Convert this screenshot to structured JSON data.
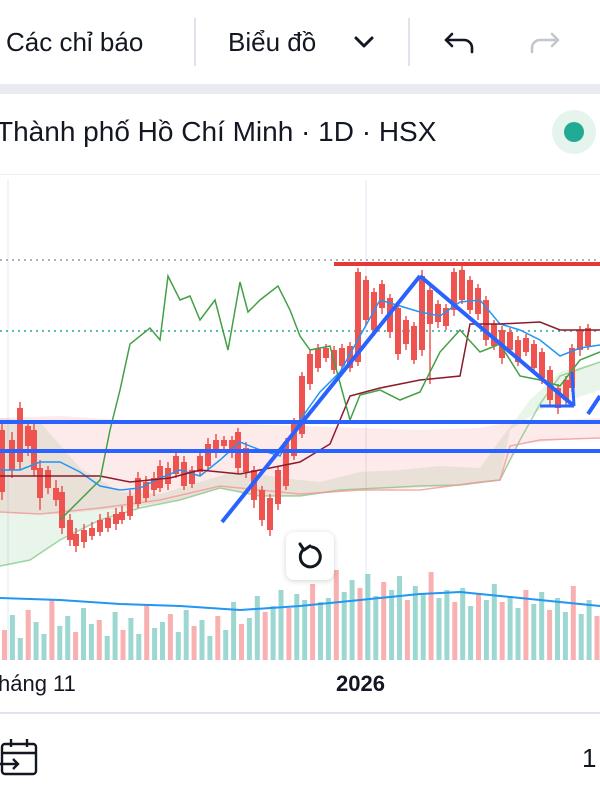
{
  "toolbar": {
    "indicators_label": "Các chỉ báo",
    "chart_type_label": "Biểu đồ",
    "icons": [
      "chevron-down-icon",
      "undo-icon",
      "redo-icon"
    ]
  },
  "symbol": {
    "title": "Thành phố Hồ Chí Minh · 1D · HSX",
    "market_status_color": "#22ab94"
  },
  "chart_data": {
    "type": "candlestick",
    "title": "",
    "xlabel": "",
    "ylabel": "",
    "x_ticks": [
      {
        "label": "háng 11",
        "bold": false
      },
      {
        "label": "2026",
        "bold": true
      }
    ],
    "colors": {
      "up": "#26a69a",
      "down": "#ef5350",
      "trend_lines": "#2962ff",
      "resistance": "#e53935"
    },
    "indicators": [
      "ichimoku-cloud",
      "volume",
      "volume-moving-average"
    ]
  },
  "bottom_bar": {
    "right_value": "1",
    "icons": [
      "calendar-goto-icon"
    ]
  }
}
